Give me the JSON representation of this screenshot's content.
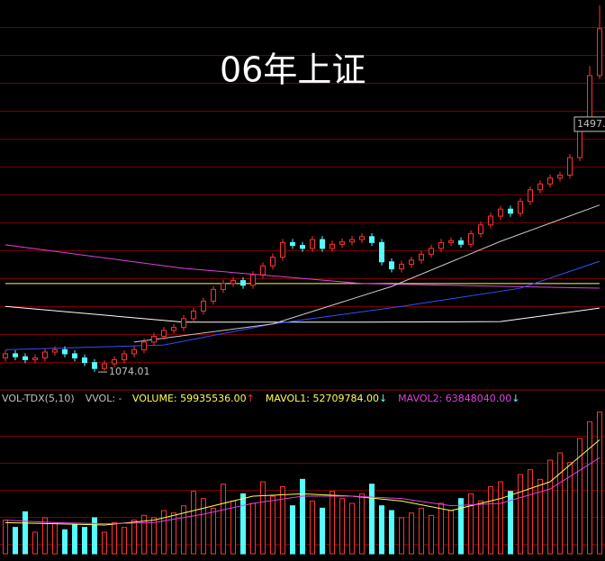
{
  "chart_data": [
    {
      "type": "candlestick",
      "title": "06年上证",
      "categories": [
        null,
        null,
        null,
        null,
        null,
        null,
        null,
        null,
        null,
        null,
        null,
        null,
        null,
        null,
        null,
        null,
        null,
        null,
        null,
        null,
        null,
        null,
        null,
        null,
        null,
        null,
        null,
        null,
        null,
        null,
        null,
        null,
        null,
        null,
        null,
        null,
        null,
        null,
        null,
        null,
        null,
        null,
        null,
        null,
        null,
        null,
        null,
        null,
        null,
        null,
        null,
        null,
        null,
        null,
        null,
        null,
        null,
        null,
        null,
        null,
        null
      ],
      "open": [
        1098,
        1105,
        1100,
        1095,
        1098,
        1108,
        1112,
        1105,
        1098,
        1090,
        1080,
        1088,
        1095,
        1105,
        1112,
        1125,
        1135,
        1145,
        1150,
        1165,
        1178,
        1195,
        1215,
        1225,
        1230,
        1222,
        1240,
        1255,
        1270,
        1295,
        1290,
        1285,
        1300,
        1285,
        1292,
        1296,
        1300,
        1305,
        1295,
        1262,
        1250,
        1258,
        1265,
        1275,
        1285,
        1295,
        1298,
        1292,
        1310,
        1325,
        1340,
        1352,
        1345,
        1365,
        1385,
        1395,
        1405,
        1410,
        1440,
        1500,
        1580
      ],
      "high": [
        1111,
        1111,
        1106,
        1104,
        1114,
        1118,
        1118,
        1111,
        1104,
        1096,
        1094,
        1101,
        1111,
        1118,
        1131,
        1141,
        1151,
        1156,
        1171,
        1184,
        1201,
        1221,
        1231,
        1236,
        1236,
        1246,
        1261,
        1276,
        1301,
        1301,
        1296,
        1306,
        1306,
        1298,
        1302,
        1306,
        1311,
        1311,
        1301,
        1268,
        1264,
        1271,
        1281,
        1291,
        1301,
        1304,
        1304,
        1316,
        1331,
        1346,
        1358,
        1358,
        1371,
        1391,
        1401,
        1411,
        1416,
        1446,
        1506,
        1596,
        1700
      ],
      "low": [
        1092,
        1094,
        1089,
        1089,
        1092,
        1102,
        1099,
        1092,
        1084,
        1074.01,
        1076,
        1082,
        1089,
        1099,
        1106,
        1119,
        1129,
        1139,
        1144,
        1159,
        1172,
        1189,
        1209,
        1219,
        1216,
        1216,
        1234,
        1249,
        1264,
        1284,
        1279,
        1279,
        1279,
        1279,
        1286,
        1290,
        1294,
        1289,
        1256,
        1244,
        1244,
        1252,
        1259,
        1269,
        1279,
        1289,
        1286,
        1286,
        1304,
        1319,
        1334,
        1339,
        1339,
        1359,
        1379,
        1389,
        1399,
        1404,
        1434,
        1494,
        1574
      ],
      "close": [
        1105,
        1100,
        1095,
        1098,
        1108,
        1112,
        1105,
        1098,
        1090,
        1080,
        1088,
        1095,
        1105,
        1112,
        1125,
        1135,
        1145,
        1150,
        1165,
        1178,
        1195,
        1215,
        1225,
        1230,
        1222,
        1240,
        1255,
        1270,
        1295,
        1290,
        1285,
        1300,
        1285,
        1292,
        1296,
        1300,
        1305,
        1295,
        1262,
        1250,
        1258,
        1265,
        1275,
        1285,
        1295,
        1298,
        1292,
        1310,
        1325,
        1340,
        1352,
        1345,
        1365,
        1385,
        1395,
        1405,
        1410,
        1440,
        1500,
        1580,
        1660
      ],
      "up_color": "#ff3232",
      "down_color": "#54fcfc",
      "ylim": [
        1048,
        1709
      ],
      "lines": [
        {
          "color": "#ffff50",
          "x": [
            0,
            60
          ],
          "values": [
            1225,
            1225
          ]
        },
        {
          "color": "#e040e0",
          "x": [
            0,
            18,
            36,
            60
          ],
          "values": [
            1291,
            1251,
            1225,
            1217
          ]
        },
        {
          "color": "#ffffff",
          "x": [
            0,
            18,
            36,
            50,
            60
          ],
          "values": [
            1186,
            1159,
            1159,
            1160,
            1183
          ]
        },
        {
          "color": "#3050ff",
          "x": [
            0,
            16,
            27,
            40,
            52,
            60
          ],
          "values": [
            1112,
            1120,
            1156,
            1186,
            1217,
            1263
          ]
        },
        {
          "color": "#c8c8c8",
          "x": [
            13,
            27,
            39,
            50,
            60
          ],
          "values": [
            1125,
            1156,
            1220,
            1297,
            1359
          ]
        }
      ],
      "annotations": [
        {
          "value": 1074.01,
          "label": "1074.01"
        },
        {
          "value": 1497,
          "label": "1497."
        }
      ]
    },
    {
      "type": "bar",
      "header": [
        {
          "label": "VOL-TDX(5,10)",
          "color": "#c0c0c0"
        },
        {
          "label": "VVOL: -",
          "color": "#c0c0c0"
        },
        {
          "label": "VOLUME: 59935536.00",
          "arrow": "↑",
          "color": "#ffff50",
          "arrow_color": "#ff3232"
        },
        {
          "label": "MAVOL1: 52709784.00",
          "arrow": "↓",
          "color": "#ffff50",
          "arrow_color": "#54fcfc"
        },
        {
          "label": "MAVOL2: 63848040.00",
          "arrow": "↓",
          "color": "#e040e0",
          "arrow_color": "#54fcfc"
        }
      ],
      "values": [
        28000000,
        22000000,
        35000000,
        18000000,
        30000000,
        26000000,
        20000000,
        24000000,
        22000000,
        30000000,
        18000000,
        26000000,
        22000000,
        28000000,
        32000000,
        30000000,
        36000000,
        34000000,
        40000000,
        52000000,
        46000000,
        38000000,
        58000000,
        44000000,
        50000000,
        42000000,
        60000000,
        48000000,
        56000000,
        40000000,
        62000000,
        44000000,
        38000000,
        52000000,
        46000000,
        42000000,
        50000000,
        58000000,
        40000000,
        36000000,
        30000000,
        34000000,
        38000000,
        32000000,
        42000000,
        36000000,
        46000000,
        50000000,
        44000000,
        56000000,
        60000000,
        52000000,
        66000000,
        70000000,
        62000000,
        78000000,
        84000000,
        76000000,
        96000000,
        110000000,
        118000000
      ],
      "ylim": [
        0,
        120000000
      ],
      "lines": [
        {
          "color": "#ffff50",
          "x": [
            0,
            5,
            10,
            15,
            20,
            25,
            30,
            35,
            40,
            45,
            50,
            55,
            60
          ],
          "values": [
            26000000,
            25000000,
            24000000,
            28000000,
            38000000,
            48000000,
            50000000,
            48000000,
            44000000,
            36000000,
            46000000,
            60000000,
            95000000
          ]
        },
        {
          "color": "#e040e0",
          "x": [
            0,
            5,
            10,
            15,
            20,
            25,
            30,
            35,
            40,
            45,
            50,
            55,
            60
          ],
          "values": [
            28000000,
            26000000,
            25000000,
            26000000,
            33000000,
            42000000,
            48000000,
            48000000,
            46000000,
            40000000,
            42000000,
            54000000,
            80000000
          ]
        }
      ]
    }
  ]
}
